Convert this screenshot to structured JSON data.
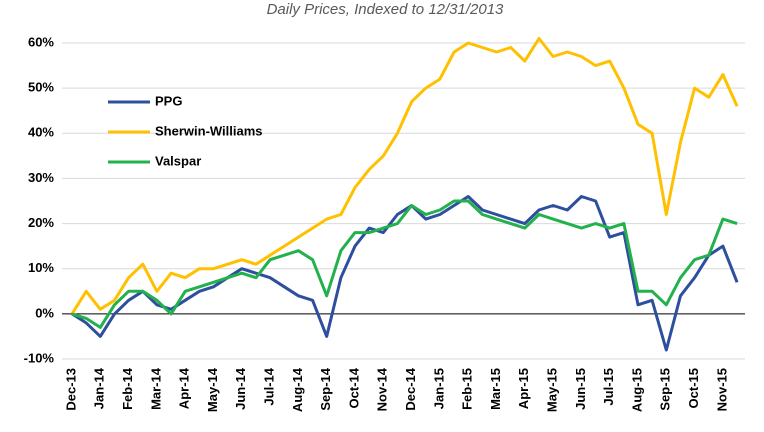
{
  "chart_data": {
    "type": "line",
    "title": "Daily Prices, Indexed to 12/31/2013",
    "categories": [
      "Dec-13",
      null,
      "Jan-14",
      null,
      "Feb-14",
      null,
      "Mar-14",
      null,
      "Apr-14",
      null,
      "May-14",
      null,
      "Jun-14",
      null,
      "Jul-14",
      null,
      "Aug-14",
      null,
      "Sep-14",
      null,
      "Oct-14",
      null,
      "Nov-14",
      null,
      "Dec-14",
      null,
      "Jan-15",
      null,
      "Feb-15",
      null,
      "Mar-15",
      null,
      "Apr-15",
      null,
      "May-15",
      null,
      "Jun-15",
      null,
      "Jul-15",
      null,
      "Aug-15",
      null,
      "Sep-15",
      null,
      "Oct-15",
      null,
      "Nov-15",
      null
    ],
    "series": [
      {
        "name": "PPG",
        "color": "#2e4e9e",
        "values": [
          0,
          -2,
          -5,
          0,
          3,
          5,
          2,
          1,
          3,
          5,
          6,
          8,
          10,
          9,
          8,
          6,
          4,
          3,
          -5,
          8,
          15,
          19,
          18,
          22,
          24,
          21,
          22,
          24,
          26,
          23,
          22,
          21,
          20,
          23,
          24,
          23,
          26,
          25,
          17,
          18,
          2,
          3,
          -8,
          4,
          8,
          13,
          15,
          7
        ]
      },
      {
        "name": "Sherwin-Williams",
        "color": "#ffc000",
        "values": [
          0,
          5,
          1,
          3,
          8,
          11,
          5,
          9,
          8,
          10,
          10,
          11,
          12,
          11,
          13,
          15,
          17,
          19,
          21,
          22,
          28,
          32,
          35,
          40,
          47,
          50,
          52,
          58,
          60,
          59,
          58,
          59,
          56,
          61,
          57,
          58,
          57,
          55,
          56,
          50,
          42,
          40,
          22,
          38,
          50,
          48,
          53,
          46
        ]
      },
      {
        "name": "Valspar",
        "color": "#22b14c",
        "values": [
          0,
          -1,
          -3,
          2,
          5,
          5,
          3,
          0,
          5,
          6,
          7,
          8,
          9,
          8,
          12,
          13,
          14,
          12,
          4,
          14,
          18,
          18,
          19,
          20,
          24,
          22,
          23,
          25,
          25,
          22,
          21,
          20,
          19,
          22,
          21,
          20,
          19,
          20,
          19,
          20,
          5,
          5,
          2,
          8,
          12,
          13,
          21,
          20
        ]
      }
    ],
    "ylim": [
      -10,
      60
    ],
    "yticks": [
      {
        "value": -10,
        "label": "-10%"
      },
      {
        "value": 0,
        "label": "0%"
      },
      {
        "value": 10,
        "label": "10%"
      },
      {
        "value": 20,
        "label": "20%"
      },
      {
        "value": 30,
        "label": "30%"
      },
      {
        "value": 40,
        "label": "40%"
      },
      {
        "value": 50,
        "label": "50%"
      },
      {
        "value": 60,
        "label": "60%"
      }
    ],
    "grid": true
  }
}
